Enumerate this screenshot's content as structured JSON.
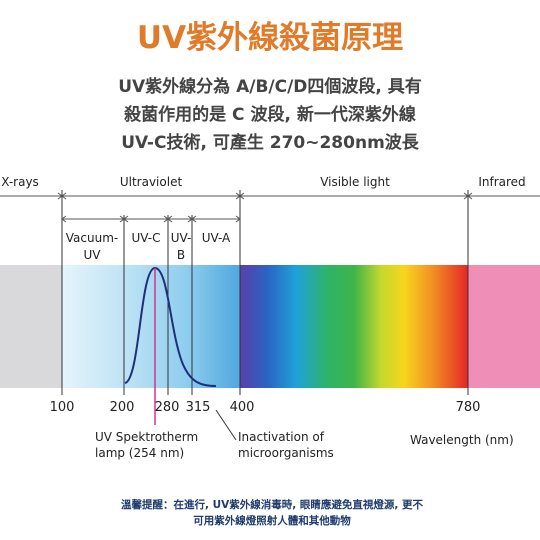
{
  "header": {
    "title": "UV紫外線殺菌原理",
    "subtitle": [
      "UV紫外線分為 A/B/C/D四個波段, 具有",
      "殺菌作用的是 C 波段, 新一代深紫外線",
      "UV-C技術, 可產生 270~280nm波長"
    ]
  },
  "regions": [
    "X-rays",
    "Ultraviolet",
    "Visible light",
    "Infrared"
  ],
  "uv_bands": [
    [
      "Vacuum-",
      "UV"
    ],
    "UV-C",
    [
      "UV-",
      "B"
    ],
    "UV-A"
  ],
  "wavelength_labels": [
    "100",
    "200",
    "280",
    "315",
    "400",
    "780"
  ],
  "annotations": [
    [
      "UV Spektrotherm",
      "lamp (254 nm)"
    ],
    [
      "Inactivation of",
      "microorganisms"
    ]
  ],
  "axis_label": "Wavelength (nm)",
  "footer": [
    "溫馨提醒：在進行, UV紫外線消毒時, 眼睛應避免直視燈源, 更不",
    "可用紫外線燈照射人體和其他動物"
  ]
}
